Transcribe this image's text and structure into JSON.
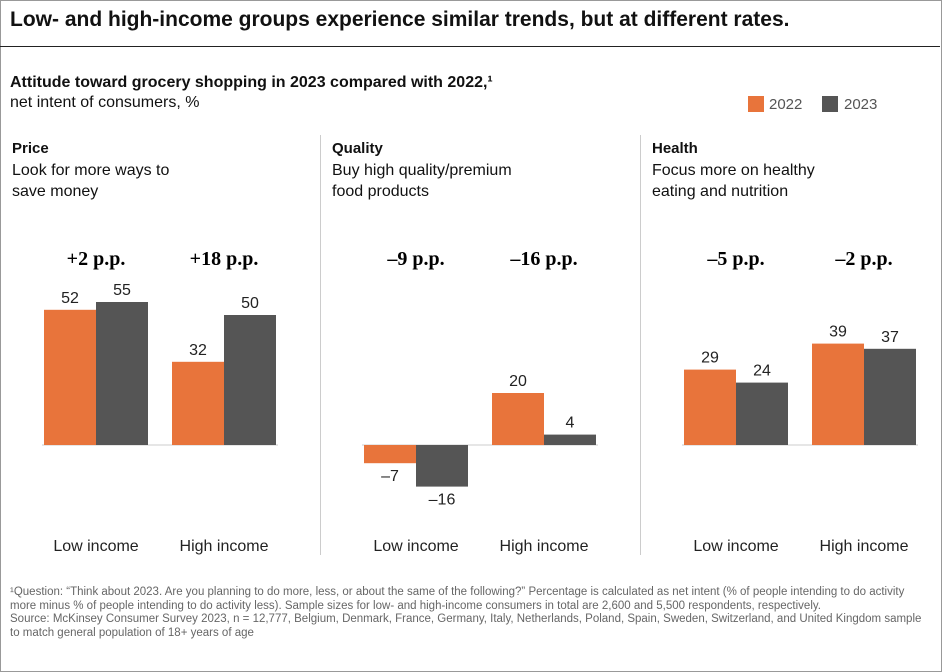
{
  "header": {
    "title": "Low- and high-income groups experience similar trends, but at different rates.",
    "subtitle": "Attitude toward grocery shopping in 2023 compared with 2022,¹",
    "unit": "net intent of consumers, %"
  },
  "chart_data": [
    {
      "type": "bar",
      "title": "Price",
      "description": "Look for more ways to save money",
      "categories": [
        "Low income",
        "High income"
      ],
      "annotations": [
        "+2 p.p.",
        "+18 p.p."
      ],
      "ylim": [
        -20,
        60
      ],
      "series": [
        {
          "name": "2022",
          "color": "#e8743b",
          "values": [
            52,
            32
          ]
        },
        {
          "name": "2023",
          "color": "#555555",
          "values": [
            55,
            50
          ]
        }
      ]
    },
    {
      "type": "bar",
      "title": "Quality",
      "description": "Buy high quality/premium food products",
      "categories": [
        "Low income",
        "High income"
      ],
      "annotations": [
        "–9 p.p.",
        "–16 p.p."
      ],
      "ylim": [
        -20,
        60
      ],
      "series": [
        {
          "name": "2022",
          "color": "#e8743b",
          "values": [
            -7,
            20
          ],
          "value_labels": [
            "–7",
            "20"
          ]
        },
        {
          "name": "2023",
          "color": "#555555",
          "values": [
            -16,
            4
          ],
          "value_labels": [
            "–16",
            "4"
          ]
        }
      ]
    },
    {
      "type": "bar",
      "title": "Health",
      "description": "Focus more on healthy eating and nutrition",
      "categories": [
        "Low income",
        "High income"
      ],
      "annotations": [
        "–5 p.p.",
        "–2 p.p."
      ],
      "ylim": [
        -20,
        60
      ],
      "series": [
        {
          "name": "2022",
          "color": "#e8743b",
          "values": [
            29,
            39
          ]
        },
        {
          "name": "2023",
          "color": "#555555",
          "values": [
            24,
            37
          ]
        }
      ]
    }
  ],
  "notes": [
    "¹Question: “Think about 2023. Are you planning to do more, less, or about the same of the following?” Percentage is calculated as net intent (% of people intending to do activity more minus % of people intending to do activity less). Sample sizes for low- and high-income consumers in total are 2,600 and 5,500 respondents, respectively.",
    "Source: McKinsey Consumer Survey 2023, n = 12,777, Belgium, Denmark, France, Germany, Italy, Netherlands, Poland, Spain, Sweden, Switzerland, and United Kingdom sample to match general population of 18+ years of age"
  ]
}
